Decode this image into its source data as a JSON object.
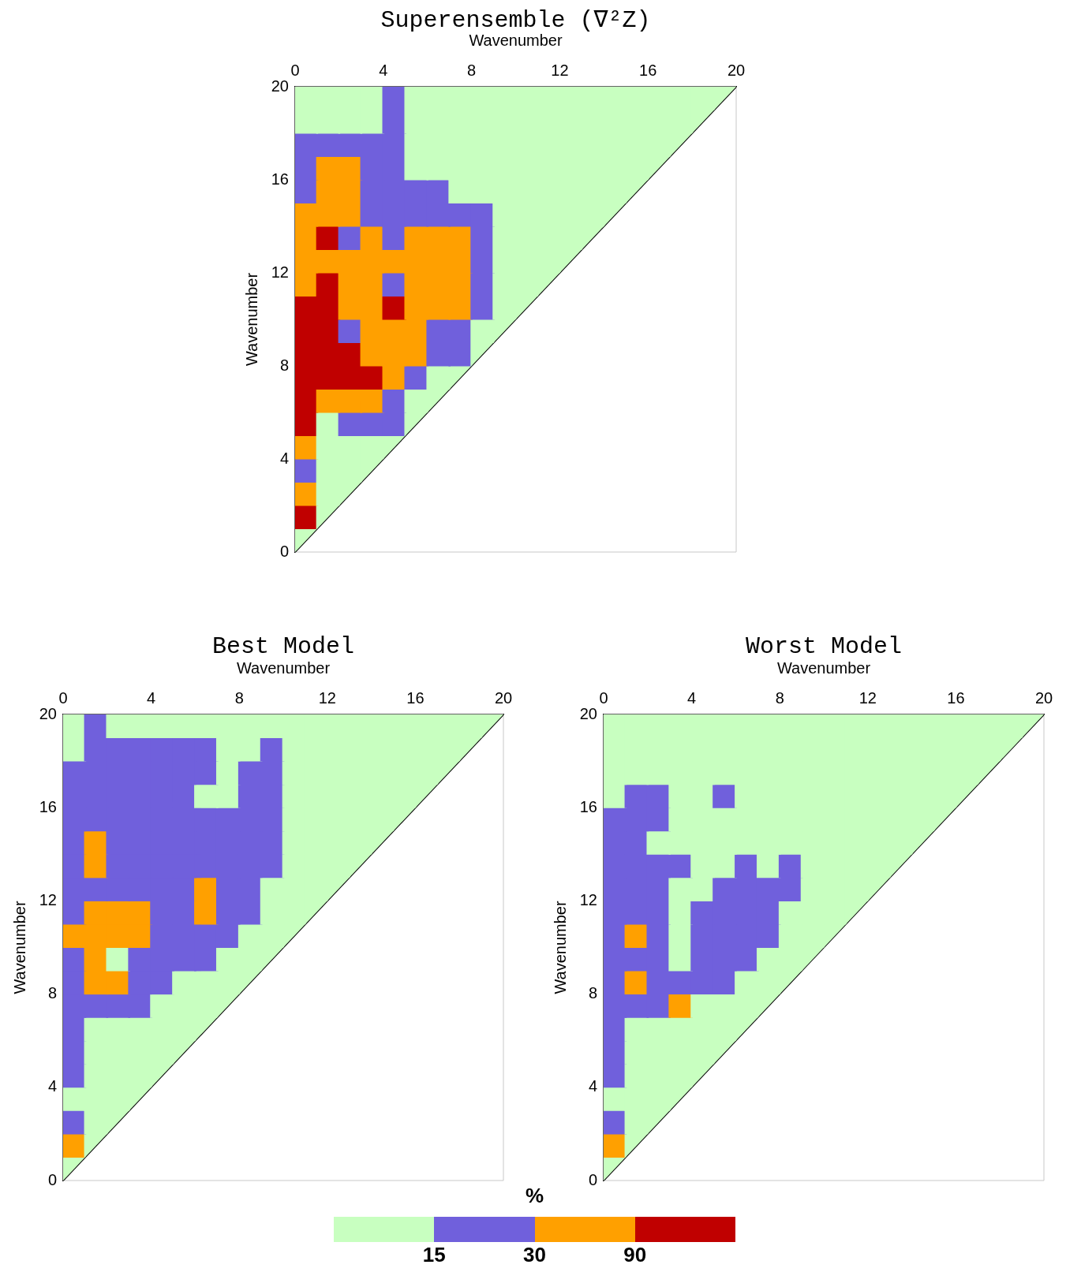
{
  "chart_data": [
    {
      "type": "scatter",
      "title": "Superensemble (∇²Z)",
      "xlabel": "Wavenumber",
      "ylabel": "Wavenumber",
      "xlim": [
        0,
        20
      ],
      "xticks": [
        0,
        4,
        8,
        12,
        16,
        20
      ],
      "ylim": [
        0,
        20
      ],
      "yticks": [
        0,
        4,
        8,
        12,
        16,
        20
      ],
      "marker": "square",
      "series": [
        {
          "x": [
            0.5,
            0.5,
            1.5,
            0.5,
            1.5,
            2.5,
            0.5,
            1.5,
            2.5,
            3.5,
            0.5,
            1.5,
            2.5,
            3.5,
            4.5,
            0.5,
            1.5,
            2.5,
            3.5,
            4.5,
            5.5,
            0.5,
            1.5,
            2.5,
            3.5,
            4.5,
            5.5,
            6.5,
            0.5,
            1.5,
            2.5,
            3.5,
            4.5,
            5.5,
            6.5,
            7.5,
            0.5,
            1.5,
            2.5,
            3.5,
            4.5,
            5.5,
            6.5,
            7.5,
            8.5,
            0.5,
            1.5,
            2.5,
            3.5,
            4.5,
            5.5,
            6.5,
            7.5,
            8.5,
            9.5,
            0.5,
            1.5,
            2.5,
            3.5,
            4.5,
            5.5,
            6.5,
            7.5,
            8.5,
            9.5,
            10.5,
            0.5,
            1.5,
            2.5,
            3.5,
            4.5,
            5.5,
            6.5,
            7.5,
            8.5,
            9.5,
            10.5,
            11.5,
            0.5,
            1.5,
            2.5,
            3.5,
            4.5,
            5.5,
            6.5,
            7.5,
            8.5,
            9.5,
            10.5,
            11.5,
            12.5,
            0.5,
            1.5,
            2.5,
            3.5,
            4.5,
            5.5,
            6.5,
            7.5,
            8.5,
            9.5,
            10.5,
            11.5,
            12.5,
            13.5,
            0.5,
            1.5,
            2.5,
            3.5,
            4.5,
            5.5,
            6.5,
            7.5,
            8.5,
            9.5,
            10.5,
            11.5,
            12.5,
            13.5,
            14.5,
            0.5,
            1.5,
            2.5,
            3.5,
            4.5,
            5.5,
            6.5,
            7.5,
            8.5,
            9.5,
            10.5,
            11.5,
            12.5,
            13.5,
            14.5,
            15.5,
            0.5,
            1.5,
            2.5,
            3.5,
            4.5,
            5.5,
            6.5,
            7.5,
            8.5,
            9.5,
            10.5,
            11.5,
            12.5,
            13.5,
            14.5,
            15.5,
            16.5,
            0.5,
            1.5,
            2.5,
            3.5,
            4.5,
            5.5,
            6.5,
            7.5,
            8.5,
            9.5,
            10.5,
            11.5,
            12.5,
            13.5,
            14.5,
            15.5,
            16.5,
            17.5,
            0.5,
            1.5,
            2.5,
            3.5,
            4.5,
            5.5,
            6.5,
            7.5,
            8.5,
            9.5,
            10.5,
            11.5,
            12.5,
            13.5,
            14.5,
            15.5,
            16.5,
            17.5,
            18.5,
            0.5,
            1.5,
            2.5,
            3.5,
            4.5,
            5.5,
            6.5,
            7.5,
            8.5,
            9.5,
            10.5,
            11.5,
            12.5,
            13.5,
            14.5,
            15.5,
            16.5,
            17.5,
            18.5,
            19.5
          ],
          "values": [
            0.5,
            1.5,
            1.5,
            2.5,
            2.5,
            2.5,
            3.5,
            3.5,
            3.5,
            3.5,
            4.5,
            4.5,
            4.5,
            4.5,
            4.5,
            5.5,
            5.5,
            5.5,
            5.5,
            5.5,
            5.5,
            6.5,
            6.5,
            6.5,
            6.5,
            6.5,
            6.5,
            6.5,
            7.5,
            7.5,
            7.5,
            7.5,
            7.5,
            7.5,
            7.5,
            7.5,
            8.5,
            8.5,
            8.5,
            8.5,
            8.5,
            8.5,
            8.5,
            8.5,
            8.5,
            9.5,
            9.5,
            9.5,
            9.5,
            9.5,
            9.5,
            9.5,
            9.5,
            9.5,
            9.5,
            10.5,
            10.5,
            10.5,
            10.5,
            10.5,
            10.5,
            10.5,
            10.5,
            10.5,
            10.5,
            10.5,
            11.5,
            11.5,
            11.5,
            11.5,
            11.5,
            11.5,
            11.5,
            11.5,
            11.5,
            11.5,
            11.5,
            11.5,
            12.5,
            12.5,
            12.5,
            12.5,
            12.5,
            12.5,
            12.5,
            12.5,
            12.5,
            12.5,
            12.5,
            12.5,
            12.5,
            13.5,
            13.5,
            13.5,
            13.5,
            13.5,
            13.5,
            13.5,
            13.5,
            13.5,
            13.5,
            13.5,
            13.5,
            13.5,
            13.5,
            14.5,
            14.5,
            14.5,
            14.5,
            14.5,
            14.5,
            14.5,
            14.5,
            14.5,
            14.5,
            14.5,
            14.5,
            14.5,
            14.5,
            14.5,
            15.5,
            15.5,
            15.5,
            15.5,
            15.5,
            15.5,
            15.5,
            15.5,
            15.5,
            15.5,
            15.5,
            15.5,
            15.5,
            15.5,
            15.5,
            15.5,
            16.5,
            16.5,
            16.5,
            16.5,
            16.5,
            16.5,
            16.5,
            16.5,
            16.5,
            16.5,
            16.5,
            16.5,
            16.5,
            16.5,
            16.5,
            16.5,
            16.5,
            17.5,
            17.5,
            17.5,
            17.5,
            17.5,
            17.5,
            17.5,
            17.5,
            17.5,
            17.5,
            17.5,
            17.5,
            17.5,
            17.5,
            17.5,
            17.5,
            17.5,
            17.5,
            18.5,
            18.5,
            18.5,
            18.5,
            18.5,
            18.5,
            18.5,
            18.5,
            18.5,
            18.5,
            18.5,
            18.5,
            18.5,
            18.5,
            18.5,
            18.5,
            18.5,
            18.5,
            18.5,
            19.5,
            19.5,
            19.5,
            19.5,
            19.5,
            19.5,
            19.5,
            19.5,
            19.5,
            19.5,
            19.5,
            19.5,
            19.5,
            19.5,
            19.5,
            19.5,
            19.5,
            19.5,
            19.5,
            19.5
          ],
          "colors": [
            "#c8ffc0",
            "#c00000",
            "#c8ffc0",
            "#ffa000",
            "#c8ffc0",
            "#c8ffc0",
            "#7060dc",
            "#c8ffc0",
            "#c8ffc0",
            "#c8ffc0",
            "#ffa000",
            "#c8ffc0",
            "#c8ffc0",
            "#c8ffc0",
            "#c8ffc0",
            "#c00000",
            "#c8ffc0",
            "#7060dc",
            "#7060dc",
            "#7060dc",
            "#c8ffc0",
            "#c00000",
            "#ffa000",
            "#ffa000",
            "#ffa000",
            "#7060dc",
            "#c8ffc0",
            "#c8ffc0",
            "#c00000",
            "#c00000",
            "#c00000",
            "#c00000",
            "#ffa000",
            "#7060dc",
            "#c8ffc0",
            "#c8ffc0",
            "#c00000",
            "#c00000",
            "#c00000",
            "#ffa000",
            "#ffa000",
            "#ffa000",
            "#7060dc",
            "#7060dc",
            "#c8ffc0",
            "#c00000",
            "#c00000",
            "#7060dc",
            "#ffa000",
            "#ffa000",
            "#ffa000",
            "#7060dc",
            "#7060dc",
            "#c8ffc0",
            "#c8ffc0",
            "#c00000",
            "#c00000",
            "#ffa000",
            "#ffa000",
            "#c00000",
            "#ffa000",
            "#ffa000",
            "#ffa000",
            "#7060dc",
            "#c8ffc0",
            "#c8ffc0",
            "#ffa000",
            "#c00000",
            "#ffa000",
            "#ffa000",
            "#7060dc",
            "#ffa000",
            "#ffa000",
            "#ffa000",
            "#7060dc",
            "#c8ffc0",
            "#c8ffc0",
            "#c8ffc0",
            "#ffa000",
            "#ffa000",
            "#ffa000",
            "#ffa000",
            "#ffa000",
            "#ffa000",
            "#ffa000",
            "#ffa000",
            "#7060dc",
            "#c8ffc0",
            "#c8ffc0",
            "#c8ffc0",
            "#c8ffc0",
            "#ffa000",
            "#c00000",
            "#7060dc",
            "#ffa000",
            "#7060dc",
            "#ffa000",
            "#ffa000",
            "#ffa000",
            "#7060dc",
            "#c8ffc0",
            "#c8ffc0",
            "#c8ffc0",
            "#c8ffc0",
            "#c8ffc0",
            "#ffa000",
            "#ffa000",
            "#ffa000",
            "#7060dc",
            "#7060dc",
            "#7060dc",
            "#7060dc",
            "#7060dc",
            "#7060dc",
            "#c8ffc0",
            "#c8ffc0",
            "#c8ffc0",
            "#c8ffc0",
            "#c8ffc0",
            "#c8ffc0",
            "#7060dc",
            "#ffa000",
            "#ffa000",
            "#7060dc",
            "#7060dc",
            "#7060dc",
            "#7060dc",
            "#c8ffc0",
            "#c8ffc0",
            "#c8ffc0",
            "#c8ffc0",
            "#c8ffc0",
            "#c8ffc0",
            "#c8ffc0",
            "#c8ffc0",
            "#c8ffc0",
            "#7060dc",
            "#ffa000",
            "#ffa000",
            "#7060dc",
            "#7060dc",
            "#c8ffc0",
            "#c8ffc0",
            "#c8ffc0",
            "#c8ffc0",
            "#c8ffc0",
            "#c8ffc0",
            "#c8ffc0",
            "#c8ffc0",
            "#c8ffc0",
            "#c8ffc0",
            "#c8ffc0",
            "#c8ffc0",
            "#7060dc",
            "#7060dc",
            "#7060dc",
            "#7060dc",
            "#7060dc",
            "#c8ffc0",
            "#c8ffc0",
            "#c8ffc0",
            "#c8ffc0",
            "#c8ffc0",
            "#c8ffc0",
            "#c8ffc0",
            "#c8ffc0",
            "#c8ffc0",
            "#c8ffc0",
            "#c8ffc0",
            "#c8ffc0",
            "#c8ffc0",
            "#c8ffc0",
            "#c8ffc0",
            "#c8ffc0",
            "#c8ffc0",
            "#7060dc",
            "#c8ffc0",
            "#c8ffc0",
            "#c8ffc0",
            "#c8ffc0",
            "#c8ffc0",
            "#c8ffc0",
            "#c8ffc0",
            "#c8ffc0",
            "#c8ffc0",
            "#c8ffc0",
            "#c8ffc0",
            "#c8ffc0",
            "#c8ffc0",
            "#c8ffc0",
            "#c8ffc0",
            "#c8ffc0",
            "#c8ffc0",
            "#c8ffc0",
            "#7060dc",
            "#c8ffc0",
            "#c8ffc0",
            "#c8ffc0",
            "#c8ffc0",
            "#c8ffc0",
            "#c8ffc0",
            "#c8ffc0",
            "#c8ffc0",
            "#c8ffc0",
            "#c8ffc0",
            "#c8ffc0",
            "#c8ffc0",
            "#c8ffc0",
            "#c8ffc0",
            "#c8ffc0"
          ]
        },
        {
          "type": "line",
          "x": [
            0,
            20
          ],
          "values": [
            0,
            20
          ],
          "color": "#000000",
          "marker": "none"
        }
      ]
    },
    {
      "type": "scatter",
      "title": "Best Model",
      "xlabel": "Wavenumber",
      "ylabel": "Wavenumber",
      "xlim": [
        0,
        20
      ],
      "xticks": [
        0,
        4,
        8,
        12,
        16,
        20
      ],
      "ylim": [
        0,
        20
      ],
      "yticks": [
        0,
        4,
        8,
        12,
        16,
        20
      ],
      "marker": "square",
      "series": [
        {
          "x": [
            0.5,
            0.5,
            1.5,
            0.5,
            1.5,
            2.5,
            0.5,
            1.5,
            2.5,
            3.5,
            0.5,
            1.5,
            2.5,
            3.5,
            4.5,
            0.5,
            1.5,
            2.5,
            3.5,
            4.5,
            5.5,
            0.5,
            1.5,
            2.5,
            3.5,
            4.5,
            5.5,
            6.5,
            0.5,
            1.5,
            2.5,
            3.5,
            4.5,
            5.5,
            6.5,
            7.5,
            0.5,
            1.5,
            2.5,
            3.5,
            4.5,
            5.5,
            6.5,
            7.5,
            8.5,
            0.5,
            1.5,
            2.5,
            3.5,
            4.5,
            5.5,
            6.5,
            7.5,
            8.5,
            9.5,
            0.5,
            1.5,
            2.5,
            3.5,
            4.5,
            5.5,
            6.5,
            7.5,
            8.5,
            9.5,
            10.5,
            0.5,
            1.5,
            2.5,
            3.5,
            4.5,
            5.5,
            6.5,
            7.5,
            8.5,
            9.5,
            10.5,
            11.5,
            0.5,
            1.5,
            2.5,
            3.5,
            4.5,
            5.5,
            6.5,
            7.5,
            8.5,
            9.5,
            10.5,
            11.5,
            12.5,
            0.5,
            1.5,
            2.5,
            3.5,
            4.5,
            5.5,
            6.5,
            7.5,
            8.5,
            9.5,
            10.5,
            11.5,
            12.5,
            13.5,
            0.5,
            1.5,
            2.5,
            3.5,
            4.5,
            5.5,
            6.5,
            7.5,
            8.5,
            9.5,
            10.5,
            11.5,
            12.5,
            13.5,
            14.5,
            0.5,
            1.5,
            2.5,
            3.5,
            4.5,
            5.5,
            6.5,
            7.5,
            8.5,
            9.5,
            10.5,
            11.5,
            12.5,
            13.5,
            14.5,
            15.5,
            0.5,
            1.5,
            2.5,
            3.5,
            4.5,
            5.5,
            6.5,
            7.5,
            8.5,
            9.5,
            10.5,
            11.5,
            12.5,
            13.5,
            14.5,
            15.5,
            16.5,
            0.5,
            1.5,
            2.5,
            3.5,
            4.5,
            5.5,
            6.5,
            7.5,
            8.5,
            9.5,
            10.5,
            11.5,
            12.5,
            13.5,
            14.5,
            15.5,
            16.5,
            17.5,
            0.5,
            1.5,
            2.5,
            3.5,
            4.5,
            5.5,
            6.5,
            7.5,
            8.5,
            9.5,
            10.5,
            11.5,
            12.5,
            13.5,
            14.5,
            15.5,
            16.5,
            17.5,
            18.5,
            0.5,
            1.5,
            2.5,
            3.5,
            4.5,
            5.5,
            6.5,
            7.5,
            8.5,
            9.5,
            10.5,
            11.5,
            12.5,
            13.5,
            14.5,
            15.5,
            16.5,
            17.5,
            18.5,
            19.5
          ],
          "values": [
            0.5,
            1.5,
            1.5,
            2.5,
            2.5,
            2.5,
            3.5,
            3.5,
            3.5,
            3.5,
            4.5,
            4.5,
            4.5,
            4.5,
            4.5,
            5.5,
            5.5,
            5.5,
            5.5,
            5.5,
            5.5,
            6.5,
            6.5,
            6.5,
            6.5,
            6.5,
            6.5,
            6.5,
            7.5,
            7.5,
            7.5,
            7.5,
            7.5,
            7.5,
            7.5,
            7.5,
            8.5,
            8.5,
            8.5,
            8.5,
            8.5,
            8.5,
            8.5,
            8.5,
            8.5,
            9.5,
            9.5,
            9.5,
            9.5,
            9.5,
            9.5,
            9.5,
            9.5,
            9.5,
            9.5,
            10.5,
            10.5,
            10.5,
            10.5,
            10.5,
            10.5,
            10.5,
            10.5,
            10.5,
            10.5,
            10.5,
            11.5,
            11.5,
            11.5,
            11.5,
            11.5,
            11.5,
            11.5,
            11.5,
            11.5,
            11.5,
            11.5,
            11.5,
            12.5,
            12.5,
            12.5,
            12.5,
            12.5,
            12.5,
            12.5,
            12.5,
            12.5,
            12.5,
            12.5,
            12.5,
            12.5,
            13.5,
            13.5,
            13.5,
            13.5,
            13.5,
            13.5,
            13.5,
            13.5,
            13.5,
            13.5,
            13.5,
            13.5,
            13.5,
            13.5,
            14.5,
            14.5,
            14.5,
            14.5,
            14.5,
            14.5,
            14.5,
            14.5,
            14.5,
            14.5,
            14.5,
            14.5,
            14.5,
            14.5,
            14.5,
            15.5,
            15.5,
            15.5,
            15.5,
            15.5,
            15.5,
            15.5,
            15.5,
            15.5,
            15.5,
            15.5,
            15.5,
            15.5,
            15.5,
            15.5,
            15.5,
            16.5,
            16.5,
            16.5,
            16.5,
            16.5,
            16.5,
            16.5,
            16.5,
            16.5,
            16.5,
            16.5,
            16.5,
            16.5,
            16.5,
            16.5,
            16.5,
            16.5,
            17.5,
            17.5,
            17.5,
            17.5,
            17.5,
            17.5,
            17.5,
            17.5,
            17.5,
            17.5,
            17.5,
            17.5,
            17.5,
            17.5,
            17.5,
            17.5,
            17.5,
            17.5,
            18.5,
            18.5,
            18.5,
            18.5,
            18.5,
            18.5,
            18.5,
            18.5,
            18.5,
            18.5,
            18.5,
            18.5,
            18.5,
            18.5,
            18.5,
            18.5,
            18.5,
            18.5,
            18.5,
            19.5,
            19.5,
            19.5,
            19.5,
            19.5,
            19.5,
            19.5,
            19.5,
            19.5,
            19.5,
            19.5,
            19.5,
            19.5,
            19.5,
            19.5,
            19.5,
            19.5,
            19.5,
            19.5,
            19.5
          ],
          "colors": [
            "#c8ffc0",
            "#ffa000",
            "#c8ffc0",
            "#7060dc",
            "#c8ffc0",
            "#c8ffc0",
            "#c8ffc0",
            "#c8ffc0",
            "#c8ffc0",
            "#c8ffc0",
            "#7060dc",
            "#c8ffc0",
            "#c8ffc0",
            "#c8ffc0",
            "#c8ffc0",
            "#7060dc",
            "#c8ffc0",
            "#c8ffc0",
            "#c8ffc0",
            "#c8ffc0",
            "#c8ffc0",
            "#7060dc",
            "#c8ffc0",
            "#c8ffc0",
            "#c8ffc0",
            "#c8ffc0",
            "#c8ffc0",
            "#c8ffc0",
            "#7060dc",
            "#7060dc",
            "#7060dc",
            "#7060dc",
            "#c8ffc0",
            "#c8ffc0",
            "#c8ffc0",
            "#c8ffc0",
            "#7060dc",
            "#ffa000",
            "#ffa000",
            "#7060dc",
            "#7060dc",
            "#c8ffc0",
            "#c8ffc0",
            "#c8ffc0",
            "#c8ffc0",
            "#7060dc",
            "#ffa000",
            "#c8ffc0",
            "#7060dc",
            "#7060dc",
            "#7060dc",
            "#7060dc",
            "#c8ffc0",
            "#c8ffc0",
            "#c8ffc0",
            "#ffa000",
            "#ffa000",
            "#ffa000",
            "#ffa000",
            "#7060dc",
            "#7060dc",
            "#7060dc",
            "#7060dc",
            "#c8ffc0",
            "#c8ffc0",
            "#c8ffc0",
            "#7060dc",
            "#ffa000",
            "#ffa000",
            "#ffa000",
            "#7060dc",
            "#7060dc",
            "#ffa000",
            "#7060dc",
            "#7060dc",
            "#c8ffc0",
            "#c8ffc0",
            "#c8ffc0",
            "#7060dc",
            "#7060dc",
            "#7060dc",
            "#7060dc",
            "#7060dc",
            "#7060dc",
            "#ffa000",
            "#7060dc",
            "#7060dc",
            "#c8ffc0",
            "#c8ffc0",
            "#c8ffc0",
            "#c8ffc0",
            "#7060dc",
            "#ffa000",
            "#7060dc",
            "#7060dc",
            "#7060dc",
            "#7060dc",
            "#7060dc",
            "#7060dc",
            "#7060dc",
            "#7060dc",
            "#c8ffc0",
            "#c8ffc0",
            "#c8ffc0",
            "#c8ffc0",
            "#7060dc",
            "#ffa000",
            "#7060dc",
            "#7060dc",
            "#7060dc",
            "#7060dc",
            "#7060dc",
            "#7060dc",
            "#7060dc",
            "#7060dc",
            "#c8ffc0",
            "#c8ffc0",
            "#c8ffc0",
            "#c8ffc0",
            "#c8ffc0",
            "#7060dc",
            "#7060dc",
            "#7060dc",
            "#7060dc",
            "#7060dc",
            "#7060dc",
            "#7060dc",
            "#7060dc",
            "#7060dc",
            "#7060dc",
            "#c8ffc0",
            "#c8ffc0",
            "#c8ffc0",
            "#c8ffc0",
            "#c8ffc0",
            "#c8ffc0",
            "#7060dc",
            "#7060dc",
            "#7060dc",
            "#7060dc",
            "#7060dc",
            "#7060dc",
            "#c8ffc0",
            "#c8ffc0",
            "#7060dc",
            "#7060dc",
            "#c8ffc0",
            "#c8ffc0",
            "#c8ffc0",
            "#c8ffc0",
            "#c8ffc0",
            "#c8ffc0",
            "#c8ffc0",
            "#7060dc",
            "#7060dc",
            "#7060dc",
            "#7060dc",
            "#7060dc",
            "#7060dc",
            "#7060dc",
            "#c8ffc0",
            "#7060dc",
            "#7060dc",
            "#c8ffc0",
            "#c8ffc0",
            "#c8ffc0",
            "#c8ffc0",
            "#c8ffc0",
            "#c8ffc0",
            "#c8ffc0",
            "#c8ffc0",
            "#c8ffc0",
            "#7060dc",
            "#7060dc",
            "#7060dc",
            "#7060dc",
            "#7060dc",
            "#7060dc",
            "#c8ffc0",
            "#c8ffc0",
            "#7060dc",
            "#c8ffc0",
            "#c8ffc0",
            "#c8ffc0",
            "#c8ffc0",
            "#c8ffc0",
            "#c8ffc0",
            "#c8ffc0",
            "#c8ffc0",
            "#c8ffc0",
            "#c8ffc0",
            "#7060dc",
            "#c8ffc0",
            "#c8ffc0",
            "#c8ffc0",
            "#c8ffc0",
            "#c8ffc0",
            "#c8ffc0",
            "#c8ffc0",
            "#c8ffc0",
            "#c8ffc0",
            "#c8ffc0",
            "#c8ffc0",
            "#c8ffc0",
            "#c8ffc0",
            "#c8ffc0",
            "#c8ffc0",
            "#c8ffc0",
            "#c8ffc0",
            "#c8ffc0"
          ]
        },
        {
          "type": "line",
          "x": [
            0,
            20
          ],
          "values": [
            0,
            20
          ],
          "color": "#000000",
          "marker": "none"
        }
      ]
    },
    {
      "type": "scatter",
      "title": "Worst Model",
      "xlabel": "Wavenumber",
      "ylabel": "Wavenumber",
      "xlim": [
        0,
        20
      ],
      "xticks": [
        0,
        4,
        8,
        12,
        16,
        20
      ],
      "ylim": [
        0,
        20
      ],
      "yticks": [
        0,
        4,
        8,
        12,
        16,
        20
      ],
      "marker": "square",
      "colors": [
        "#c8ffc0",
        "#7060dc",
        "#ffa000",
        "#c00000"
      ],
      "clabel": "%",
      "annotations": [
        "15",
        "30",
        "90"
      ],
      "series": [
        {
          "x": [
            0.5,
            0.5,
            1.5,
            0.5,
            1.5,
            2.5,
            0.5,
            1.5,
            2.5,
            3.5,
            0.5,
            1.5,
            2.5,
            3.5,
            4.5,
            0.5,
            1.5,
            2.5,
            3.5,
            4.5,
            5.5,
            0.5,
            1.5,
            2.5,
            3.5,
            4.5,
            5.5,
            6.5,
            0.5,
            1.5,
            2.5,
            3.5,
            4.5,
            5.5,
            6.5,
            7.5,
            0.5,
            1.5,
            2.5,
            3.5,
            4.5,
            5.5,
            6.5,
            7.5,
            8.5,
            0.5,
            1.5,
            2.5,
            3.5,
            4.5,
            5.5,
            6.5,
            7.5,
            8.5,
            9.5,
            0.5,
            1.5,
            2.5,
            3.5,
            4.5,
            5.5,
            6.5,
            7.5,
            8.5,
            9.5,
            10.5,
            0.5,
            1.5,
            2.5,
            3.5,
            4.5,
            5.5,
            6.5,
            7.5,
            8.5,
            9.5,
            10.5,
            11.5,
            0.5,
            1.5,
            2.5,
            3.5,
            4.5,
            5.5,
            6.5,
            7.5,
            8.5,
            9.5,
            10.5,
            11.5,
            12.5,
            0.5,
            1.5,
            2.5,
            3.5,
            4.5,
            5.5,
            6.5,
            7.5,
            8.5,
            9.5,
            10.5,
            11.5,
            12.5,
            13.5,
            0.5,
            1.5,
            2.5,
            3.5,
            4.5,
            5.5,
            6.5,
            7.5,
            8.5,
            9.5,
            10.5,
            11.5,
            12.5,
            13.5,
            14.5,
            0.5,
            1.5,
            2.5,
            3.5,
            4.5,
            5.5,
            6.5,
            7.5,
            8.5,
            9.5,
            10.5,
            11.5,
            12.5,
            13.5,
            14.5,
            15.5,
            0.5,
            1.5,
            2.5,
            3.5,
            4.5,
            5.5,
            6.5,
            7.5,
            8.5,
            9.5,
            10.5,
            11.5,
            12.5,
            13.5,
            14.5,
            15.5,
            16.5,
            0.5,
            1.5,
            2.5,
            3.5,
            4.5,
            5.5,
            6.5,
            7.5,
            8.5,
            9.5,
            10.5,
            11.5,
            12.5,
            13.5,
            14.5,
            15.5,
            16.5,
            17.5,
            0.5,
            1.5,
            2.5,
            3.5,
            4.5,
            5.5,
            6.5,
            7.5,
            8.5,
            9.5,
            10.5,
            11.5,
            12.5,
            13.5,
            14.5,
            15.5,
            16.5,
            17.5,
            18.5,
            0.5,
            1.5,
            2.5,
            3.5,
            4.5,
            5.5,
            6.5,
            7.5,
            8.5,
            9.5,
            10.5,
            11.5,
            12.5,
            13.5,
            14.5,
            15.5,
            16.5,
            17.5,
            18.5,
            19.5
          ],
          "values": [
            0.5,
            1.5,
            1.5,
            2.5,
            2.5,
            2.5,
            3.5,
            3.5,
            3.5,
            3.5,
            4.5,
            4.5,
            4.5,
            4.5,
            4.5,
            5.5,
            5.5,
            5.5,
            5.5,
            5.5,
            5.5,
            6.5,
            6.5,
            6.5,
            6.5,
            6.5,
            6.5,
            6.5,
            7.5,
            7.5,
            7.5,
            7.5,
            7.5,
            7.5,
            7.5,
            7.5,
            8.5,
            8.5,
            8.5,
            8.5,
            8.5,
            8.5,
            8.5,
            8.5,
            8.5,
            9.5,
            9.5,
            9.5,
            9.5,
            9.5,
            9.5,
            9.5,
            9.5,
            9.5,
            9.5,
            10.5,
            10.5,
            10.5,
            10.5,
            10.5,
            10.5,
            10.5,
            10.5,
            10.5,
            10.5,
            10.5,
            11.5,
            11.5,
            11.5,
            11.5,
            11.5,
            11.5,
            11.5,
            11.5,
            11.5,
            11.5,
            11.5,
            11.5,
            12.5,
            12.5,
            12.5,
            12.5,
            12.5,
            12.5,
            12.5,
            12.5,
            12.5,
            12.5,
            12.5,
            12.5,
            12.5,
            13.5,
            13.5,
            13.5,
            13.5,
            13.5,
            13.5,
            13.5,
            13.5,
            13.5,
            13.5,
            13.5,
            13.5,
            13.5,
            13.5,
            14.5,
            14.5,
            14.5,
            14.5,
            14.5,
            14.5,
            14.5,
            14.5,
            14.5,
            14.5,
            14.5,
            14.5,
            14.5,
            14.5,
            14.5,
            15.5,
            15.5,
            15.5,
            15.5,
            15.5,
            15.5,
            15.5,
            15.5,
            15.5,
            15.5,
            15.5,
            15.5,
            15.5,
            15.5,
            15.5,
            15.5,
            16.5,
            16.5,
            16.5,
            16.5,
            16.5,
            16.5,
            16.5,
            16.5,
            16.5,
            16.5,
            16.5,
            16.5,
            16.5,
            16.5,
            16.5,
            16.5,
            16.5,
            17.5,
            17.5,
            17.5,
            17.5,
            17.5,
            17.5,
            17.5,
            17.5,
            17.5,
            17.5,
            17.5,
            17.5,
            17.5,
            17.5,
            17.5,
            17.5,
            17.5,
            17.5,
            18.5,
            18.5,
            18.5,
            18.5,
            18.5,
            18.5,
            18.5,
            18.5,
            18.5,
            18.5,
            18.5,
            18.5,
            18.5,
            18.5,
            18.5,
            18.5,
            18.5,
            18.5,
            18.5,
            19.5,
            19.5,
            19.5,
            19.5,
            19.5,
            19.5,
            19.5,
            19.5,
            19.5,
            19.5,
            19.5,
            19.5,
            19.5,
            19.5,
            19.5,
            19.5,
            19.5,
            19.5,
            19.5,
            19.5
          ],
          "colors": [
            "#c8ffc0",
            "#ffa000",
            "#c8ffc0",
            "#7060dc",
            "#c8ffc0",
            "#c8ffc0",
            "#c8ffc0",
            "#c8ffc0",
            "#c8ffc0",
            "#c8ffc0",
            "#7060dc",
            "#c8ffc0",
            "#c8ffc0",
            "#c8ffc0",
            "#c8ffc0",
            "#7060dc",
            "#c8ffc0",
            "#c8ffc0",
            "#c8ffc0",
            "#c8ffc0",
            "#c8ffc0",
            "#7060dc",
            "#c8ffc0",
            "#c8ffc0",
            "#c8ffc0",
            "#c8ffc0",
            "#c8ffc0",
            "#c8ffc0",
            "#7060dc",
            "#7060dc",
            "#7060dc",
            "#ffa000",
            "#c8ffc0",
            "#c8ffc0",
            "#c8ffc0",
            "#c8ffc0",
            "#7060dc",
            "#ffa000",
            "#7060dc",
            "#7060dc",
            "#7060dc",
            "#7060dc",
            "#c8ffc0",
            "#c8ffc0",
            "#c8ffc0",
            "#7060dc",
            "#7060dc",
            "#7060dc",
            "#c8ffc0",
            "#7060dc",
            "#7060dc",
            "#7060dc",
            "#c8ffc0",
            "#c8ffc0",
            "#c8ffc0",
            "#7060dc",
            "#ffa000",
            "#7060dc",
            "#c8ffc0",
            "#7060dc",
            "#7060dc",
            "#7060dc",
            "#7060dc",
            "#c8ffc0",
            "#c8ffc0",
            "#c8ffc0",
            "#7060dc",
            "#7060dc",
            "#7060dc",
            "#c8ffc0",
            "#7060dc",
            "#7060dc",
            "#7060dc",
            "#7060dc",
            "#c8ffc0",
            "#c8ffc0",
            "#c8ffc0",
            "#c8ffc0",
            "#7060dc",
            "#7060dc",
            "#7060dc",
            "#c8ffc0",
            "#c8ffc0",
            "#7060dc",
            "#7060dc",
            "#7060dc",
            "#7060dc",
            "#c8ffc0",
            "#c8ffc0",
            "#c8ffc0",
            "#c8ffc0",
            "#7060dc",
            "#7060dc",
            "#7060dc",
            "#7060dc",
            "#c8ffc0",
            "#c8ffc0",
            "#7060dc",
            "#c8ffc0",
            "#7060dc",
            "#c8ffc0",
            "#c8ffc0",
            "#c8ffc0",
            "#c8ffc0",
            "#c8ffc0",
            "#7060dc",
            "#7060dc",
            "#c8ffc0",
            "#c8ffc0",
            "#c8ffc0",
            "#c8ffc0",
            "#c8ffc0",
            "#c8ffc0",
            "#c8ffc0",
            "#c8ffc0",
            "#c8ffc0",
            "#c8ffc0",
            "#c8ffc0",
            "#c8ffc0",
            "#c8ffc0",
            "#7060dc",
            "#7060dc",
            "#7060dc",
            "#c8ffc0",
            "#c8ffc0",
            "#c8ffc0",
            "#c8ffc0",
            "#c8ffc0",
            "#c8ffc0",
            "#c8ffc0",
            "#c8ffc0",
            "#c8ffc0",
            "#c8ffc0",
            "#c8ffc0",
            "#c8ffc0",
            "#c8ffc0",
            "#c8ffc0",
            "#7060dc",
            "#7060dc",
            "#c8ffc0",
            "#c8ffc0",
            "#7060dc",
            "#c8ffc0",
            "#c8ffc0",
            "#c8ffc0",
            "#c8ffc0",
            "#c8ffc0",
            "#c8ffc0",
            "#c8ffc0",
            "#c8ffc0",
            "#c8ffc0",
            "#c8ffc0",
            "#c8ffc0",
            "#c8ffc0",
            "#c8ffc0",
            "#c8ffc0",
            "#c8ffc0",
            "#c8ffc0",
            "#c8ffc0",
            "#c8ffc0",
            "#c8ffc0",
            "#c8ffc0",
            "#c8ffc0",
            "#c8ffc0",
            "#c8ffc0",
            "#c8ffc0",
            "#c8ffc0",
            "#c8ffc0",
            "#c8ffc0",
            "#c8ffc0",
            "#c8ffc0",
            "#c8ffc0",
            "#c8ffc0",
            "#c8ffc0",
            "#c8ffc0",
            "#c8ffc0",
            "#c8ffc0",
            "#c8ffc0",
            "#c8ffc0",
            "#c8ffc0",
            "#c8ffc0",
            "#c8ffc0",
            "#c8ffc0",
            "#c8ffc0",
            "#c8ffc0",
            "#c8ffc0",
            "#c8ffc0",
            "#c8ffc0",
            "#c8ffc0",
            "#c8ffc0",
            "#c8ffc0",
            "#c8ffc0",
            "#c8ffc0",
            "#c8ffc0",
            "#c8ffc0",
            "#c8ffc0",
            "#c8ffc0",
            "#c8ffc0",
            "#c8ffc0",
            "#c8ffc0",
            "#c8ffc0",
            "#c8ffc0",
            "#c8ffc0",
            "#c8ffc0",
            "#c8ffc0",
            "#c8ffc0",
            "#c8ffc0",
            "#c8ffc0",
            "#c8ffc0",
            "#c8ffc0"
          ]
        },
        {
          "type": "line",
          "x": [
            0,
            20
          ],
          "values": [
            0,
            20
          ],
          "color": "#000000",
          "marker": "none"
        }
      ]
    }
  ]
}
